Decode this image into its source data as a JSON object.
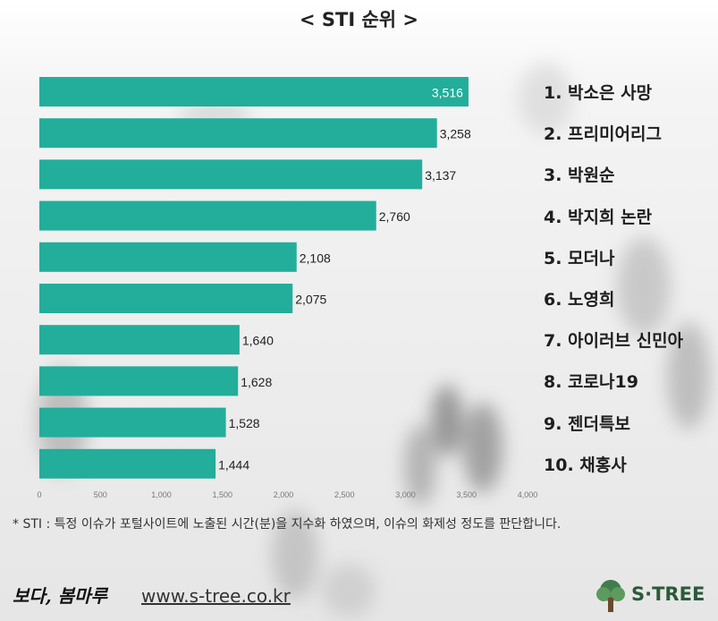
{
  "title": "< STI 순위 >",
  "chart_data": {
    "type": "bar",
    "orientation": "horizontal",
    "categories": [
      "박소은 사망",
      "프리미어리그",
      "박원순",
      "박지희 논란",
      "모더나",
      "노영희",
      "아이러브 신민아",
      "코로나19",
      "젠더특보",
      "채홍사"
    ],
    "values": [
      3516,
      3258,
      3137,
      2760,
      2108,
      2075,
      1640,
      1628,
      1528,
      1444
    ],
    "value_labels": [
      "3,516",
      "3,258",
      "3,137",
      "2,760",
      "2,108",
      "2,075",
      "1,640",
      "1,628",
      "1,528",
      "1,444"
    ],
    "xlim": [
      0,
      4000
    ],
    "xticks": [
      "0",
      "500",
      "1,000",
      "1,500",
      "2,000",
      "2,500",
      "3,000",
      "3,500",
      "4,000"
    ],
    "bar_color": "#22ae9a",
    "grid": false
  },
  "ranking": [
    "1. 박소은 사망",
    "2. 프리미어리그",
    "3. 박원순",
    "4. 박지희 논란",
    "5. 모더나",
    "6. 노영희",
    "7. 아이러브 신민아",
    "8. 코로나19",
    "9. 젠더특보",
    "10. 채홍사"
  ],
  "footnote": "* STI : 특정 이슈가 포털사이트에 노출된 시간(분)을 지수화 하였으며, 이슈의 화제성 정도를 판단합니다.",
  "footer": {
    "brand": "보다, 봄마루",
    "url": "www.s-tree.co.kr",
    "logo": "S·TREE",
    "logo_icon": "tree-icon"
  },
  "colors": {
    "accent": "#22ae9a",
    "logo": "#2b5a3a"
  }
}
